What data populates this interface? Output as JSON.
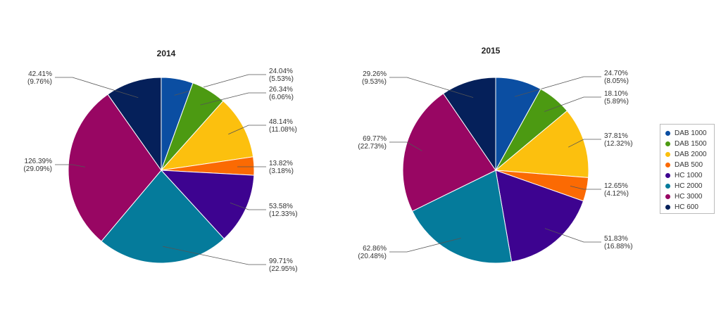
{
  "chart_data": [
    {
      "type": "pie",
      "title": "2014",
      "categories": [
        "DAB 1000",
        "DAB 1500",
        "DAB 2000",
        "DAB 500",
        "HC 1000",
        "HC 2000",
        "HC 3000",
        "HC 600"
      ],
      "values": [
        24.04,
        26.34,
        48.14,
        13.82,
        53.58,
        99.71,
        126.39,
        42.41
      ],
      "labels": [
        [
          "24.04%",
          "(5.53%)"
        ],
        [
          "26.34%",
          "(6.06%)"
        ],
        [
          "48.14%",
          "(11.08%)"
        ],
        [
          "13.82%",
          "(3.18%)"
        ],
        [
          "53.58%",
          "(12.33%)"
        ],
        [
          "99.71%",
          "(22.95%)"
        ],
        [
          "126.39%",
          "(29.09%)"
        ],
        [
          "42.41%",
          "(9.76%)"
        ]
      ]
    },
    {
      "type": "pie",
      "title": "2015",
      "categories": [
        "DAB 1000",
        "DAB 1500",
        "DAB 2000",
        "DAB 500",
        "HC 1000",
        "HC 2000",
        "HC 3000",
        "HC 600"
      ],
      "values": [
        24.7,
        18.1,
        37.81,
        12.65,
        51.83,
        62.86,
        69.77,
        29.26
      ],
      "labels": [
        [
          "24.70%",
          "(8.05%)"
        ],
        [
          "18.10%",
          "(5.89%)"
        ],
        [
          "37.81%",
          "(12.32%)"
        ],
        [
          "12.65%",
          "(4.12%)"
        ],
        [
          "51.83%",
          "(16.88%)"
        ],
        [
          "62.86%",
          "(20.48%)"
        ],
        [
          "69.77%",
          "(22.73%)"
        ],
        [
          "29.26%",
          "(9.53%)"
        ]
      ]
    }
  ],
  "legend": {
    "placement": "right",
    "items": [
      {
        "label": "DAB 1000",
        "color": "#0b4ea2"
      },
      {
        "label": "DAB 1500",
        "color": "#4c9a12"
      },
      {
        "label": "DAB 2000",
        "color": "#fcc00e"
      },
      {
        "label": "DAB 500",
        "color": "#fb6a03"
      },
      {
        "label": "HC 1000",
        "color": "#3d0390"
      },
      {
        "label": "HC 2000",
        "color": "#057b9b"
      },
      {
        "label": "HC 3000",
        "color": "#980663"
      },
      {
        "label": "HC 600",
        "color": "#05205a"
      }
    ]
  }
}
